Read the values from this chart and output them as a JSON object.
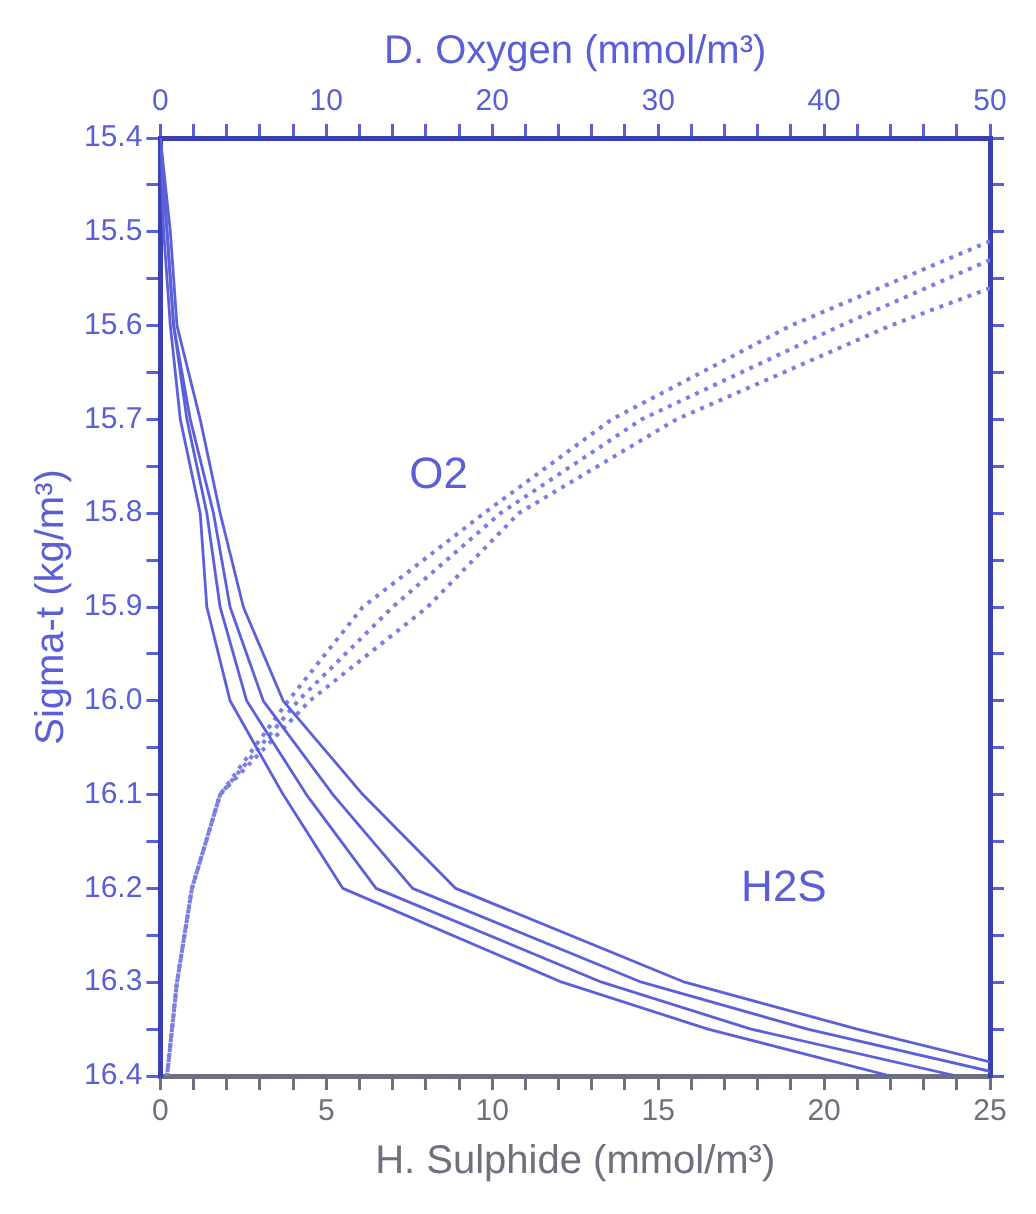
{
  "chart_data": {
    "type": "line",
    "xlabel": "H. Sulphide (mmol/m³)",
    "x2label": "D. Oxygen (mmol/m³)",
    "ylabel": "Sigma-t (kg/m³)",
    "xlim": [
      0,
      25
    ],
    "xticks": [
      0,
      {
        "value": 1,
        "label": null
      },
      {
        "value": 2,
        "label": null
      },
      {
        "value": 3,
        "label": null
      },
      {
        "value": 4,
        "label": null
      },
      5,
      {
        "value": 6,
        "label": null
      },
      {
        "value": 7,
        "label": null
      },
      {
        "value": 8,
        "label": null
      },
      {
        "value": 9,
        "label": null
      },
      10,
      {
        "value": 11,
        "label": null
      },
      {
        "value": 12,
        "label": null
      },
      {
        "value": 13,
        "label": null
      },
      {
        "value": 14,
        "label": null
      },
      15,
      {
        "value": 16,
        "label": null
      },
      {
        "value": 17,
        "label": null
      },
      {
        "value": 18,
        "label": null
      },
      {
        "value": 19,
        "label": null
      },
      20,
      {
        "value": 21,
        "label": null
      },
      {
        "value": 22,
        "label": null
      },
      {
        "value": 23,
        "label": null
      },
      {
        "value": 24,
        "label": null
      },
      25
    ],
    "x2lim": [
      0,
      50
    ],
    "x2ticks": [
      0,
      {
        "value": 2,
        "label": null
      },
      {
        "value": 4,
        "label": null
      },
      {
        "value": 6,
        "label": null
      },
      {
        "value": 8,
        "label": null
      },
      10,
      {
        "value": 12,
        "label": null
      },
      {
        "value": 14,
        "label": null
      },
      {
        "value": 16,
        "label": null
      },
      {
        "value": 18,
        "label": null
      },
      20,
      {
        "value": 22,
        "label": null
      },
      {
        "value": 24,
        "label": null
      },
      {
        "value": 26,
        "label": null
      },
      {
        "value": 28,
        "label": null
      },
      30,
      {
        "value": 32,
        "label": null
      },
      {
        "value": 34,
        "label": null
      },
      {
        "value": 36,
        "label": null
      },
      {
        "value": 38,
        "label": null
      },
      40,
      {
        "value": 42,
        "label": null
      },
      {
        "value": 44,
        "label": null
      },
      {
        "value": 46,
        "label": null
      },
      {
        "value": 48,
        "label": null
      },
      50
    ],
    "ylim": [
      16.4,
      15.4
    ],
    "yticks": [
      15.4,
      {
        "value": 15.45,
        "label": null
      },
      15.5,
      {
        "value": 15.55,
        "label": null
      },
      15.6,
      {
        "value": 15.65,
        "label": null
      },
      15.7,
      {
        "value": 15.75,
        "label": null
      },
      15.8,
      {
        "value": 15.85,
        "label": null
      },
      15.9,
      {
        "value": 15.95,
        "label": null
      },
      {
        "value": 16,
        "label": "16.0"
      },
      {
        "value": 16.05,
        "label": null
      },
      16.1,
      {
        "value": 16.15,
        "label": null
      },
      16.2,
      {
        "value": 16.25,
        "label": null
      },
      16.3,
      {
        "value": 16.35,
        "label": null
      },
      16.4
    ],
    "marker": "none",
    "annotations": [
      "O2",
      "H2S"
    ],
    "series": [
      {
        "color": "#5b5fd9",
        "line_style": "solid",
        "x": [
          0,
          0.1,
          0.3,
          0.6,
          1.2,
          1.4,
          2.1,
          3.7,
          5.5,
          12.1,
          16.5,
          22
        ],
        "values": [
          15.4,
          15.5,
          15.6,
          15.7,
          15.8,
          15.9,
          16.0,
          16.1,
          16.2,
          16.3,
          16.35,
          16.4
        ]
      },
      {
        "color": "#5b5fd9",
        "line_style": "solid",
        "x": [
          0,
          0.2,
          0.4,
          0.8,
          1.4,
          1.8,
          2.6,
          4.4,
          6.5,
          13.3,
          17.8,
          24
        ],
        "values": [
          15.4,
          15.5,
          15.6,
          15.7,
          15.8,
          15.9,
          16.0,
          16.1,
          16.2,
          16.3,
          16.35,
          16.4
        ]
      },
      {
        "color": "#5b5fd9",
        "line_style": "solid",
        "x": [
          0,
          0.2,
          0.4,
          0.9,
          1.6,
          2.1,
          3.1,
          5.2,
          7.6,
          14.5,
          19.5,
          25
        ],
        "values": [
          15.4,
          15.5,
          15.6,
          15.7,
          15.8,
          15.9,
          16.0,
          16.1,
          16.2,
          16.3,
          16.35,
          16.395
        ]
      },
      {
        "color": "#5b5fd9",
        "line_style": "solid",
        "x": [
          0,
          0.3,
          0.5,
          1.2,
          1.8,
          2.5,
          3.7,
          6.1,
          8.9,
          15.8,
          21.0,
          25
        ],
        "values": [
          15.4,
          15.5,
          15.6,
          15.7,
          15.8,
          15.9,
          16.0,
          16.1,
          16.2,
          16.3,
          16.35,
          16.385
        ]
      },
      {
        "color": "#7a7ee0",
        "line_style": "dotted",
        "axis": "x2",
        "x": [
          50,
          38,
          27.2,
          19.5,
          12.2,
          7.7,
          3.6,
          1.9,
          1.0,
          0.4
        ],
        "values": [
          15.51,
          15.6,
          15.7,
          15.8,
          15.9,
          16.0,
          16.1,
          16.2,
          16.3,
          16.4
        ]
      },
      {
        "color": "#7a7ee0",
        "line_style": "dotted",
        "axis": "x2",
        "x": [
          50,
          41,
          29,
          20.5,
          14,
          8.3,
          3.6,
          1.9,
          1.0,
          0.4
        ],
        "values": [
          15.53,
          15.6,
          15.7,
          15.8,
          15.9,
          16.0,
          16.1,
          16.2,
          16.3,
          16.4
        ]
      },
      {
        "color": "#7a7ee0",
        "line_style": "dotted",
        "axis": "x2",
        "x": [
          50,
          44,
          31.1,
          21.6,
          16.1,
          9.0,
          3.6,
          1.9,
          1.0,
          0.4
        ],
        "values": [
          15.56,
          15.6,
          15.7,
          15.8,
          15.9,
          16.0,
          16.1,
          16.2,
          16.3,
          16.4
        ]
      }
    ]
  }
}
